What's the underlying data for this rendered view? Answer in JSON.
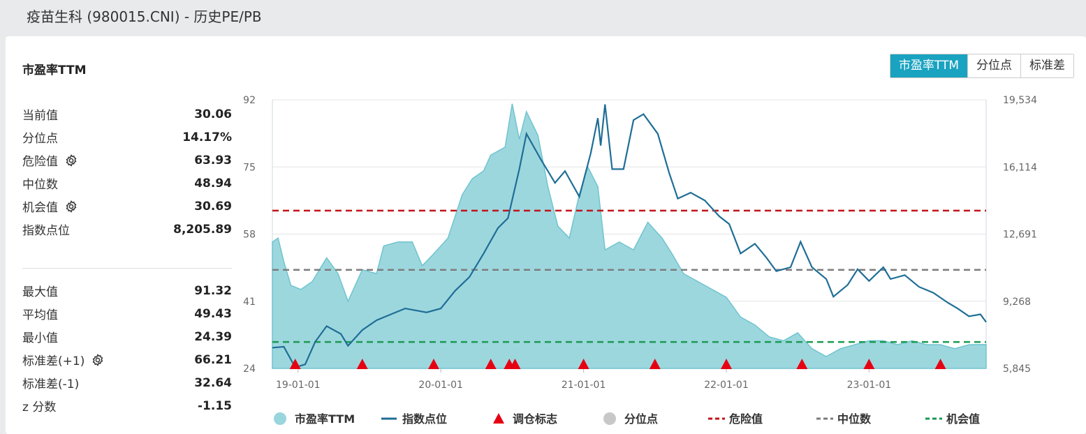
{
  "page": {
    "title": "疫苗生科 (980015.CNI) - 历史PE/PB"
  },
  "panel": {
    "title": "市盈率TTM"
  },
  "tabs": [
    {
      "label": "市盈率TTM",
      "active": true
    },
    {
      "label": "分位点",
      "active": false
    },
    {
      "label": "标准差",
      "active": false
    }
  ],
  "stats_top": [
    {
      "label": "当前值",
      "value": "30.06",
      "gear": false
    },
    {
      "label": "分位点",
      "value": "14.17%",
      "gear": false
    },
    {
      "label": "危险值",
      "value": "63.93",
      "gear": true
    },
    {
      "label": "中位数",
      "value": "48.94",
      "gear": false
    },
    {
      "label": "机会值",
      "value": "30.69",
      "gear": true
    },
    {
      "label": "指数点位",
      "value": "8,205.89",
      "gear": false
    }
  ],
  "stats_bottom": [
    {
      "label": "最大值",
      "value": "91.32",
      "gear": false
    },
    {
      "label": "平均值",
      "value": "49.43",
      "gear": false
    },
    {
      "label": "最小值",
      "value": "24.39",
      "gear": false
    },
    {
      "label": "标准差(+1)",
      "value": "66.21",
      "gear": true
    },
    {
      "label": "标准差(-1)",
      "value": "32.64",
      "gear": false
    },
    {
      "label": "z 分数",
      "value": "-1.15",
      "gear": false
    }
  ],
  "colors": {
    "area_fill": "#98d5dc",
    "area_stroke": "#6fc4cf",
    "index_line": "#1f6e96",
    "marker": "#e60012",
    "danger": "#c0141a",
    "median": "#7d7d7d",
    "opportunity": "#1a9a50",
    "disabled": "#c8c8c8",
    "tab_active": "#1aa3c0"
  },
  "chart_data": {
    "type": "area",
    "y_left": {
      "ticks": [
        92,
        75,
        58,
        41,
        24
      ],
      "range": [
        24,
        92
      ]
    },
    "y_right": {
      "ticks": [
        "19,534",
        "16,114",
        "12,691",
        "9,268",
        "5,845"
      ],
      "range": [
        5845,
        19534
      ]
    },
    "x_ticks": [
      {
        "label": "19-01-01",
        "t": 2019.0
      },
      {
        "label": "20-01-01",
        "t": 2020.0
      },
      {
        "label": "21-01-01",
        "t": 2021.0
      },
      {
        "label": "22-01-01",
        "t": 2022.0
      },
      {
        "label": "23-01-01",
        "t": 2023.0
      }
    ],
    "x_range": [
      2018.82,
      2023.82
    ],
    "reference_lines": {
      "danger": 63.93,
      "median": 48.94,
      "opportunity": 30.69
    },
    "series": [
      {
        "name": "市盈率TTM",
        "kind": "area",
        "points": [
          [
            2018.82,
            56
          ],
          [
            2018.86,
            57
          ],
          [
            2018.9,
            51
          ],
          [
            2018.95,
            45
          ],
          [
            2019.02,
            44
          ],
          [
            2019.1,
            46
          ],
          [
            2019.2,
            52
          ],
          [
            2019.28,
            48
          ],
          [
            2019.35,
            41
          ],
          [
            2019.45,
            49
          ],
          [
            2019.55,
            48
          ],
          [
            2019.6,
            55
          ],
          [
            2019.7,
            56
          ],
          [
            2019.8,
            56
          ],
          [
            2019.87,
            50
          ],
          [
            2019.95,
            53
          ],
          [
            2020.05,
            57
          ],
          [
            2020.15,
            68
          ],
          [
            2020.22,
            72
          ],
          [
            2020.3,
            74
          ],
          [
            2020.35,
            78
          ],
          [
            2020.45,
            80
          ],
          [
            2020.5,
            91
          ],
          [
            2020.55,
            82
          ],
          [
            2020.6,
            89
          ],
          [
            2020.68,
            83
          ],
          [
            2020.75,
            70
          ],
          [
            2020.82,
            60
          ],
          [
            2020.9,
            57
          ],
          [
            2020.97,
            68
          ],
          [
            2021.03,
            75
          ],
          [
            2021.1,
            70
          ],
          [
            2021.15,
            54
          ],
          [
            2021.25,
            56
          ],
          [
            2021.35,
            54
          ],
          [
            2021.45,
            61
          ],
          [
            2021.55,
            57
          ],
          [
            2021.62,
            53
          ],
          [
            2021.7,
            48
          ],
          [
            2021.8,
            46
          ],
          [
            2021.9,
            44
          ],
          [
            2022.0,
            42
          ],
          [
            2022.1,
            37
          ],
          [
            2022.2,
            35
          ],
          [
            2022.3,
            32
          ],
          [
            2022.4,
            31
          ],
          [
            2022.5,
            33
          ],
          [
            2022.6,
            29
          ],
          [
            2022.7,
            27
          ],
          [
            2022.8,
            29
          ],
          [
            2022.9,
            30
          ],
          [
            2023.0,
            31
          ],
          [
            2023.1,
            31
          ],
          [
            2023.2,
            30
          ],
          [
            2023.3,
            31
          ],
          [
            2023.4,
            30
          ],
          [
            2023.5,
            30
          ],
          [
            2023.6,
            29
          ],
          [
            2023.7,
            30
          ],
          [
            2023.82,
            30.06
          ]
        ]
      },
      {
        "name": "指数点位",
        "kind": "line",
        "points": [
          [
            2018.82,
            6900
          ],
          [
            2018.9,
            6950
          ],
          [
            2018.98,
            5900
          ],
          [
            2019.05,
            6050
          ],
          [
            2019.12,
            7200
          ],
          [
            2019.2,
            8000
          ],
          [
            2019.3,
            7600
          ],
          [
            2019.35,
            7000
          ],
          [
            2019.45,
            7800
          ],
          [
            2019.55,
            8300
          ],
          [
            2019.65,
            8600
          ],
          [
            2019.75,
            8900
          ],
          [
            2019.9,
            8700
          ],
          [
            2020.0,
            8900
          ],
          [
            2020.1,
            9800
          ],
          [
            2020.2,
            10500
          ],
          [
            2020.3,
            11700
          ],
          [
            2020.4,
            13000
          ],
          [
            2020.47,
            13500
          ],
          [
            2020.55,
            16000
          ],
          [
            2020.6,
            17800
          ],
          [
            2020.7,
            16500
          ],
          [
            2020.8,
            15300
          ],
          [
            2020.87,
            15900
          ],
          [
            2020.97,
            14600
          ],
          [
            2021.05,
            16800
          ],
          [
            2021.1,
            18600
          ],
          [
            2021.12,
            17200
          ],
          [
            2021.15,
            19300
          ],
          [
            2021.2,
            16000
          ],
          [
            2021.28,
            16000
          ],
          [
            2021.35,
            18500
          ],
          [
            2021.42,
            18800
          ],
          [
            2021.52,
            17800
          ],
          [
            2021.6,
            15800
          ],
          [
            2021.66,
            14500
          ],
          [
            2021.75,
            14800
          ],
          [
            2021.85,
            14400
          ],
          [
            2021.95,
            13600
          ],
          [
            2022.02,
            13200
          ],
          [
            2022.1,
            11700
          ],
          [
            2022.2,
            12200
          ],
          [
            2022.28,
            11500
          ],
          [
            2022.35,
            10800
          ],
          [
            2022.45,
            11000
          ],
          [
            2022.52,
            12300
          ],
          [
            2022.6,
            11000
          ],
          [
            2022.7,
            10400
          ],
          [
            2022.75,
            9500
          ],
          [
            2022.85,
            10100
          ],
          [
            2022.92,
            10900
          ],
          [
            2023.0,
            10300
          ],
          [
            2023.1,
            11000
          ],
          [
            2023.15,
            10400
          ],
          [
            2023.25,
            10600
          ],
          [
            2023.35,
            10000
          ],
          [
            2023.45,
            9700
          ],
          [
            2023.55,
            9200
          ],
          [
            2023.62,
            8900
          ],
          [
            2023.7,
            8500
          ],
          [
            2023.78,
            8600
          ],
          [
            2023.82,
            8205.89
          ]
        ]
      }
    ],
    "markers": {
      "name": "调仓标志",
      "t": [
        2018.98,
        2019.45,
        2019.95,
        2020.35,
        2020.48,
        2020.52,
        2021.0,
        2021.5,
        2022.0,
        2022.53,
        2023.0,
        2023.5
      ]
    },
    "legend": [
      {
        "key": "area",
        "label": "市盈率TTM"
      },
      {
        "key": "line",
        "label": "指数点位"
      },
      {
        "key": "marker",
        "label": "调仓标志"
      },
      {
        "key": "disabled",
        "label": "分位点"
      },
      {
        "key": "danger",
        "label": "危险值"
      },
      {
        "key": "median",
        "label": "中位数"
      },
      {
        "key": "opportunity",
        "label": "机会值"
      }
    ]
  }
}
